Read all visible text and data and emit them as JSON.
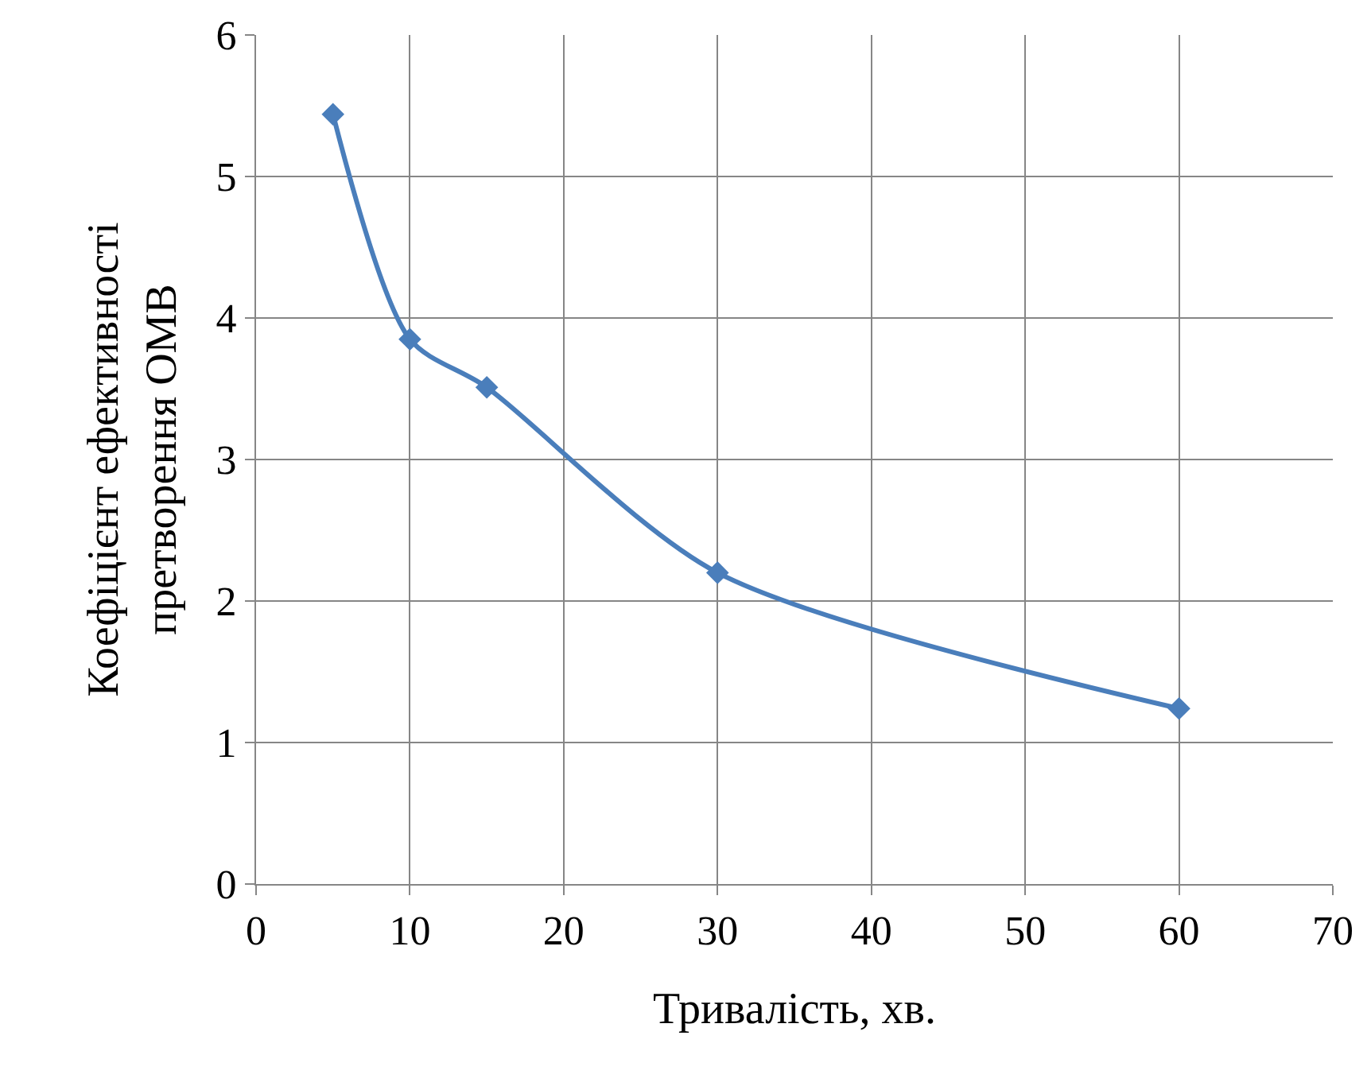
{
  "chart_data": {
    "type": "line",
    "xlabel": "Тривалість, хв.",
    "ylabel": "Коефіцієнт ефективності претворення ОМВ",
    "x": [
      5,
      10,
      15,
      30,
      60
    ],
    "series": [
      {
        "color": "#4a7ebb",
        "values": [
          5.44,
          3.85,
          3.51,
          2.2,
          1.24
        ]
      }
    ],
    "xlim": [
      0,
      70
    ],
    "xticks": [
      0,
      10,
      20,
      30,
      40,
      50,
      60,
      70
    ],
    "ylim": [
      0,
      6
    ],
    "yticks": [
      0,
      1,
      2,
      3,
      4,
      5,
      6
    ],
    "grid": true,
    "marker": "diamond",
    "line_style": "solid"
  }
}
